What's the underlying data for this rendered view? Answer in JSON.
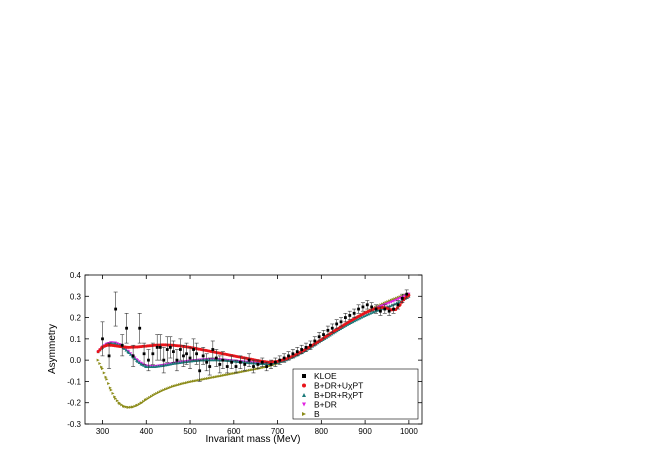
{
  "chart_data": {
    "type": "scatter",
    "title": "",
    "xlabel": "Invariant mass (MeV)",
    "ylabel": "Asymmetry",
    "xlim": [
      260,
      1030
    ],
    "ylim": [
      -0.3,
      0.4
    ],
    "xticks": [
      300,
      400,
      500,
      600,
      700,
      800,
      900,
      1000
    ],
    "yticks": [
      -0.3,
      -0.2,
      -0.1,
      0.0,
      0.1,
      0.2,
      0.3,
      0.4
    ],
    "xtick_labels": [
      "300",
      "400",
      "500",
      "600",
      "700",
      "800",
      "900",
      "1000"
    ],
    "ytick_labels": [
      "-0.3",
      "-0.2",
      "-0.1",
      "0.0",
      "0.1",
      "0.2",
      "0.3",
      "0.4"
    ],
    "grid": false,
    "legend_position": "bottom-right",
    "series": [
      {
        "name": "KLOE",
        "marker": "square",
        "color": "#000000",
        "error_bars": true,
        "points": [
          [
            300,
            0.1,
            0.08
          ],
          [
            315,
            0.02,
            0.06
          ],
          [
            330,
            0.24,
            0.08
          ],
          [
            345,
            0.07,
            0.05
          ],
          [
            355,
            0.15,
            0.07
          ],
          [
            370,
            0.02,
            0.05
          ],
          [
            385,
            0.15,
            0.07
          ],
          [
            395,
            0.03,
            0.05
          ],
          [
            405,
            0.0,
            0.05
          ],
          [
            415,
            0.03,
            0.05
          ],
          [
            425,
            0.06,
            0.06
          ],
          [
            432,
            0.06,
            0.06
          ],
          [
            440,
            0.0,
            0.06
          ],
          [
            448,
            0.05,
            0.06
          ],
          [
            455,
            0.06,
            0.05
          ],
          [
            462,
            0.04,
            0.05
          ],
          [
            470,
            0.0,
            0.05
          ],
          [
            478,
            0.05,
            0.05
          ],
          [
            485,
            0.02,
            0.05
          ],
          [
            492,
            0.03,
            0.05
          ],
          [
            500,
            0.01,
            0.05
          ],
          [
            508,
            0.05,
            0.05
          ],
          [
            515,
            0.03,
            0.05
          ],
          [
            522,
            -0.05,
            0.05
          ],
          [
            530,
            0.02,
            0.04
          ],
          [
            538,
            -0.01,
            0.04
          ],
          [
            545,
            -0.03,
            0.04
          ],
          [
            552,
            0.05,
            0.04
          ],
          [
            560,
            0.01,
            0.04
          ],
          [
            568,
            -0.02,
            0.04
          ],
          [
            575,
            0.0,
            0.04
          ],
          [
            585,
            -0.03,
            0.03
          ],
          [
            595,
            -0.01,
            0.03
          ],
          [
            605,
            -0.03,
            0.03
          ],
          [
            615,
            -0.01,
            0.03
          ],
          [
            625,
            -0.02,
            0.03
          ],
          [
            635,
            0.0,
            0.03
          ],
          [
            645,
            -0.03,
            0.03
          ],
          [
            655,
            -0.02,
            0.02
          ],
          [
            665,
            -0.01,
            0.02
          ],
          [
            675,
            -0.03,
            0.02
          ],
          [
            685,
            -0.02,
            0.02
          ],
          [
            695,
            -0.01,
            0.02
          ],
          [
            705,
            0.0,
            0.02
          ],
          [
            715,
            0.01,
            0.02
          ],
          [
            725,
            0.02,
            0.02
          ],
          [
            735,
            0.03,
            0.02
          ],
          [
            745,
            0.04,
            0.02
          ],
          [
            755,
            0.05,
            0.02
          ],
          [
            765,
            0.06,
            0.02
          ],
          [
            775,
            0.07,
            0.02
          ],
          [
            785,
            0.09,
            0.02
          ],
          [
            795,
            0.11,
            0.02
          ],
          [
            805,
            0.12,
            0.02
          ],
          [
            815,
            0.14,
            0.02
          ],
          [
            825,
            0.15,
            0.02
          ],
          [
            835,
            0.17,
            0.02
          ],
          [
            845,
            0.18,
            0.02
          ],
          [
            855,
            0.2,
            0.02
          ],
          [
            865,
            0.21,
            0.02
          ],
          [
            875,
            0.22,
            0.02
          ],
          [
            885,
            0.24,
            0.02
          ],
          [
            895,
            0.25,
            0.02
          ],
          [
            905,
            0.26,
            0.02
          ],
          [
            915,
            0.25,
            0.02
          ],
          [
            925,
            0.24,
            0.02
          ],
          [
            935,
            0.23,
            0.02
          ],
          [
            945,
            0.24,
            0.02
          ],
          [
            955,
            0.23,
            0.02
          ],
          [
            965,
            0.24,
            0.02
          ],
          [
            975,
            0.26,
            0.02
          ],
          [
            985,
            0.29,
            0.02
          ],
          [
            995,
            0.31,
            0.02
          ]
        ]
      },
      {
        "name": "B+DR+UχPT",
        "marker": "circle",
        "color": "#e8141a",
        "curve": [
          [
            290,
            0.04
          ],
          [
            300,
            0.062
          ],
          [
            310,
            0.07
          ],
          [
            320,
            0.07
          ],
          [
            340,
            0.064
          ],
          [
            360,
            0.06
          ],
          [
            380,
            0.062
          ],
          [
            400,
            0.066
          ],
          [
            420,
            0.07
          ],
          [
            440,
            0.072
          ],
          [
            460,
            0.07
          ],
          [
            480,
            0.066
          ],
          [
            500,
            0.06
          ],
          [
            520,
            0.052
          ],
          [
            540,
            0.044
          ],
          [
            560,
            0.036
          ],
          [
            580,
            0.028
          ],
          [
            600,
            0.02
          ],
          [
            620,
            0.012
          ],
          [
            640,
            0.004
          ],
          [
            660,
            -0.004
          ],
          [
            680,
            -0.01
          ],
          [
            700,
            -0.006
          ],
          [
            720,
            0.006
          ],
          [
            740,
            0.024
          ],
          [
            760,
            0.046
          ],
          [
            780,
            0.07
          ],
          [
            800,
            0.096
          ],
          [
            820,
            0.124
          ],
          [
            840,
            0.15
          ],
          [
            860,
            0.176
          ],
          [
            880,
            0.2
          ],
          [
            900,
            0.222
          ],
          [
            920,
            0.24
          ],
          [
            940,
            0.248
          ],
          [
            950,
            0.244
          ],
          [
            960,
            0.236
          ],
          [
            970,
            0.238
          ],
          [
            980,
            0.26
          ],
          [
            990,
            0.29
          ],
          [
            1000,
            0.305
          ]
        ]
      },
      {
        "name": "B+DR+RχPT",
        "marker": "triangle",
        "color": "#1a7a7a",
        "curve": [
          [
            290,
            0.04
          ],
          [
            300,
            0.06
          ],
          [
            310,
            0.075
          ],
          [
            320,
            0.08
          ],
          [
            330,
            0.078
          ],
          [
            340,
            0.07
          ],
          [
            350,
            0.055
          ],
          [
            360,
            0.036
          ],
          [
            370,
            0.015
          ],
          [
            380,
            -0.005
          ],
          [
            390,
            -0.02
          ],
          [
            400,
            -0.03
          ],
          [
            420,
            -0.03
          ],
          [
            440,
            -0.024
          ],
          [
            460,
            -0.016
          ],
          [
            480,
            -0.01
          ],
          [
            500,
            -0.004
          ],
          [
            520,
            0.0
          ],
          [
            540,
            0.002
          ],
          [
            560,
            0.002
          ],
          [
            580,
            0.0
          ],
          [
            600,
            -0.004
          ],
          [
            620,
            -0.008
          ],
          [
            640,
            -0.012
          ],
          [
            660,
            -0.015
          ],
          [
            680,
            -0.016
          ],
          [
            700,
            -0.01
          ],
          [
            720,
            0.002
          ],
          [
            740,
            0.02
          ],
          [
            760,
            0.042
          ],
          [
            780,
            0.066
          ],
          [
            800,
            0.092
          ],
          [
            820,
            0.118
          ],
          [
            840,
            0.144
          ],
          [
            860,
            0.168
          ],
          [
            880,
            0.19
          ],
          [
            900,
            0.21
          ],
          [
            920,
            0.228
          ],
          [
            940,
            0.244
          ],
          [
            960,
            0.258
          ],
          [
            980,
            0.276
          ],
          [
            1000,
            0.3
          ]
        ]
      },
      {
        "name": "B+DR",
        "marker": "triangle-down",
        "color": "#e020e0",
        "curve": [
          [
            290,
            0.04
          ],
          [
            300,
            0.062
          ],
          [
            310,
            0.076
          ],
          [
            320,
            0.082
          ],
          [
            330,
            0.08
          ],
          [
            340,
            0.072
          ],
          [
            350,
            0.058
          ],
          [
            360,
            0.038
          ],
          [
            370,
            0.018
          ],
          [
            380,
            -0.002
          ],
          [
            390,
            -0.018
          ],
          [
            400,
            -0.028
          ],
          [
            420,
            -0.03
          ],
          [
            440,
            -0.024
          ],
          [
            460,
            -0.016
          ],
          [
            480,
            -0.01
          ],
          [
            500,
            -0.004
          ],
          [
            520,
            0.0
          ],
          [
            540,
            0.003
          ],
          [
            560,
            0.003
          ],
          [
            580,
            0.0
          ],
          [
            600,
            -0.004
          ],
          [
            620,
            -0.008
          ],
          [
            640,
            -0.012
          ],
          [
            660,
            -0.016
          ],
          [
            680,
            -0.017
          ],
          [
            700,
            -0.011
          ],
          [
            720,
            0.002
          ],
          [
            740,
            0.02
          ],
          [
            760,
            0.042
          ],
          [
            780,
            0.068
          ],
          [
            800,
            0.094
          ],
          [
            820,
            0.12
          ],
          [
            840,
            0.146
          ],
          [
            860,
            0.172
          ],
          [
            880,
            0.196
          ],
          [
            900,
            0.218
          ],
          [
            920,
            0.238
          ],
          [
            940,
            0.256
          ],
          [
            960,
            0.272
          ],
          [
            980,
            0.29
          ],
          [
            1000,
            0.31
          ]
        ]
      },
      {
        "name": "B",
        "marker": "triangle-right",
        "color": "#8c8c1a",
        "curve": [
          [
            290,
            0.0
          ],
          [
            300,
            -0.04
          ],
          [
            310,
            -0.09
          ],
          [
            320,
            -0.14
          ],
          [
            330,
            -0.18
          ],
          [
            340,
            -0.205
          ],
          [
            350,
            -0.218
          ],
          [
            360,
            -0.222
          ],
          [
            370,
            -0.22
          ],
          [
            380,
            -0.212
          ],
          [
            390,
            -0.2
          ],
          [
            400,
            -0.185
          ],
          [
            420,
            -0.16
          ],
          [
            440,
            -0.14
          ],
          [
            460,
            -0.124
          ],
          [
            480,
            -0.112
          ],
          [
            500,
            -0.102
          ],
          [
            520,
            -0.094
          ],
          [
            540,
            -0.086
          ],
          [
            560,
            -0.078
          ],
          [
            580,
            -0.07
          ],
          [
            600,
            -0.062
          ],
          [
            620,
            -0.054
          ],
          [
            640,
            -0.046
          ],
          [
            660,
            -0.038
          ],
          [
            680,
            -0.028
          ],
          [
            700,
            -0.016
          ],
          [
            720,
            0.0
          ],
          [
            740,
            0.02
          ],
          [
            760,
            0.044
          ],
          [
            780,
            0.07
          ],
          [
            800,
            0.096
          ],
          [
            820,
            0.122
          ],
          [
            840,
            0.148
          ],
          [
            860,
            0.174
          ],
          [
            880,
            0.198
          ],
          [
            900,
            0.222
          ],
          [
            920,
            0.244
          ],
          [
            940,
            0.264
          ],
          [
            960,
            0.282
          ],
          [
            980,
            0.298
          ],
          [
            1000,
            0.312
          ]
        ]
      }
    ]
  }
}
